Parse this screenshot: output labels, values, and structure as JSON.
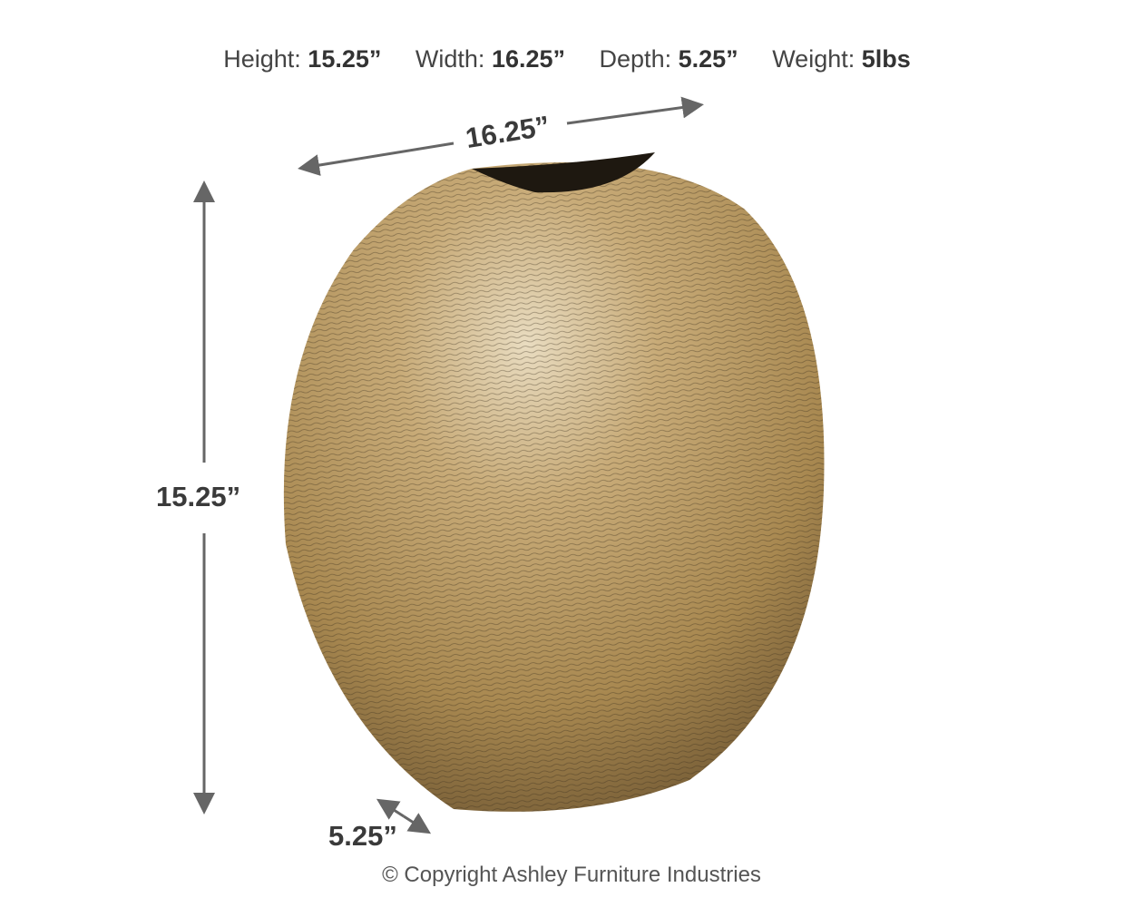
{
  "specs": [
    {
      "label": "Height:",
      "value": "15.25”"
    },
    {
      "label": "Width:",
      "value": "16.25”"
    },
    {
      "label": "Depth:",
      "value": "5.25”"
    },
    {
      "label": "Weight:",
      "value": "5lbs"
    }
  ],
  "dimensions": {
    "width": "16.25”",
    "height": "15.25”",
    "depth": "5.25”"
  },
  "colors": {
    "arrow": "#666666",
    "vase_gold": "#b8965a"
  },
  "copyright": "© Copyright Ashley Furniture Industries"
}
